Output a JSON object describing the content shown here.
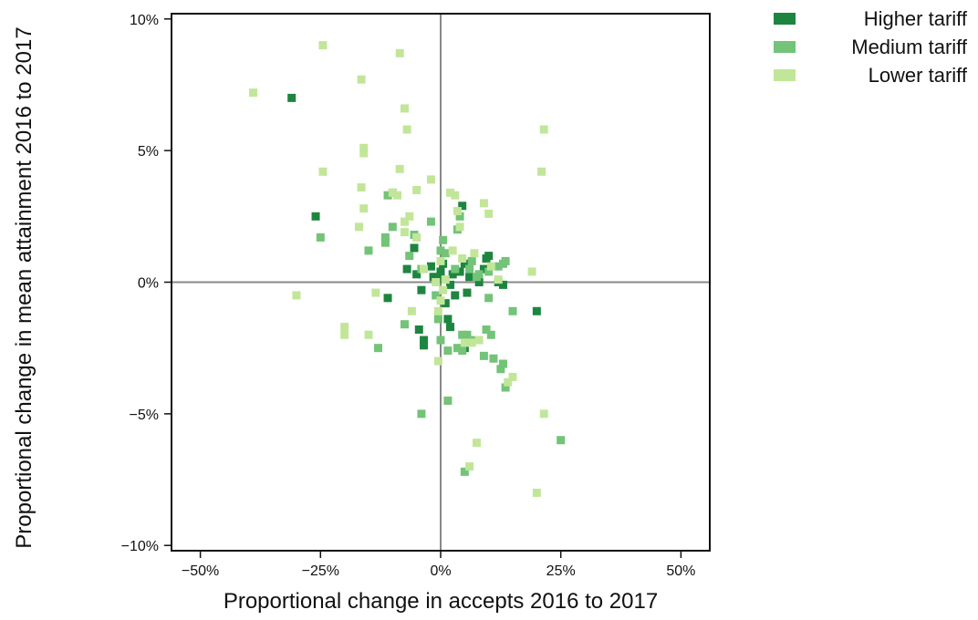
{
  "chart_data": {
    "type": "scatter",
    "title": "",
    "xlabel": "Proportional change in accepts 2016 to 2017",
    "ylabel": "Proportional change in mean attainment 2016 to 2017",
    "xlim": [
      -0.56,
      0.56
    ],
    "ylim": [
      -0.102,
      0.102
    ],
    "xticks": [
      -0.5,
      -0.25,
      0,
      0.25,
      0.5
    ],
    "xtick_labels": [
      "−50%",
      "−25%",
      "0%",
      "25%",
      "50%"
    ],
    "yticks": [
      -0.1,
      -0.05,
      0,
      0.05,
      0.1
    ],
    "ytick_labels": [
      "−10%",
      "−5%",
      "0%",
      "5%",
      "10%"
    ],
    "reference_lines": {
      "x": 0,
      "y": 0
    },
    "grid": false,
    "legend_position": "top-right",
    "marker": "square",
    "series": [
      {
        "name": "Higher tariff",
        "color": "#1e8540",
        "points": [
          [
            -0.31,
            0.07
          ],
          [
            -0.26,
            0.025
          ],
          [
            -0.11,
            -0.006
          ],
          [
            -0.07,
            0.005
          ],
          [
            -0.055,
            0.013
          ],
          [
            -0.05,
            0.003
          ],
          [
            -0.045,
            -0.018
          ],
          [
            -0.04,
            -0.003
          ],
          [
            -0.035,
            -0.022
          ],
          [
            -0.035,
            -0.024
          ],
          [
            -0.02,
            0.006
          ],
          [
            -0.015,
            0.002
          ],
          [
            -0.005,
            0.001
          ],
          [
            0.0,
            0.004
          ],
          [
            0.005,
            0.007
          ],
          [
            0.01,
            -0.008
          ],
          [
            0.015,
            -0.014
          ],
          [
            0.02,
            -0.017
          ],
          [
            0.02,
            -0.001
          ],
          [
            0.025,
            0.003
          ],
          [
            0.03,
            -0.005
          ],
          [
            0.04,
            0.004
          ],
          [
            0.045,
            0.029
          ],
          [
            0.05,
            -0.025
          ],
          [
            0.05,
            0.007
          ],
          [
            0.055,
            -0.004
          ],
          [
            0.06,
            0.002
          ],
          [
            0.08,
            0.0
          ],
          [
            0.09,
            0.005
          ],
          [
            0.095,
            0.009
          ],
          [
            0.1,
            0.01
          ],
          [
            0.12,
            0.0
          ],
          [
            0.13,
            -0.001
          ],
          [
            0.2,
            -0.011
          ]
        ]
      },
      {
        "name": "Medium tariff",
        "color": "#73c378",
        "points": [
          [
            -0.25,
            0.017
          ],
          [
            -0.15,
            0.012
          ],
          [
            -0.13,
            -0.025
          ],
          [
            -0.115,
            0.015
          ],
          [
            -0.115,
            0.017
          ],
          [
            -0.11,
            0.033
          ],
          [
            -0.1,
            0.021
          ],
          [
            -0.1,
            0.034
          ],
          [
            -0.075,
            -0.016
          ],
          [
            -0.065,
            0.01
          ],
          [
            -0.055,
            0.018
          ],
          [
            -0.04,
            -0.05
          ],
          [
            -0.04,
            0.005
          ],
          [
            -0.02,
            0.023
          ],
          [
            -0.01,
            -0.005
          ],
          [
            -0.005,
            -0.014
          ],
          [
            0.0,
            0.012
          ],
          [
            0.0,
            -0.022
          ],
          [
            0.005,
            0.016
          ],
          [
            0.01,
            0.011
          ],
          [
            0.015,
            -0.045
          ],
          [
            0.015,
            -0.026
          ],
          [
            0.03,
            0.005
          ],
          [
            0.035,
            -0.025
          ],
          [
            0.035,
            0.02
          ],
          [
            0.04,
            0.025
          ],
          [
            0.045,
            -0.02
          ],
          [
            0.045,
            -0.026
          ],
          [
            0.05,
            -0.072
          ],
          [
            0.055,
            -0.02
          ],
          [
            0.06,
            0.005
          ],
          [
            0.065,
            0.008
          ],
          [
            0.07,
            -0.022
          ],
          [
            0.075,
            0.002
          ],
          [
            0.08,
            0.003
          ],
          [
            0.09,
            -0.028
          ],
          [
            0.095,
            -0.018
          ],
          [
            0.1,
            0.004
          ],
          [
            0.1,
            -0.006
          ],
          [
            0.105,
            -0.02
          ],
          [
            0.11,
            -0.029
          ],
          [
            0.12,
            0.006
          ],
          [
            0.125,
            -0.033
          ],
          [
            0.13,
            -0.031
          ],
          [
            0.13,
            0.007
          ],
          [
            0.135,
            0.008
          ],
          [
            0.135,
            -0.04
          ],
          [
            0.15,
            -0.011
          ],
          [
            0.25,
            -0.06
          ]
        ]
      },
      {
        "name": "Lower tariff",
        "color": "#c2e699",
        "points": [
          [
            -0.39,
            0.072
          ],
          [
            -0.3,
            -0.005
          ],
          [
            -0.245,
            0.09
          ],
          [
            -0.245,
            0.042
          ],
          [
            -0.2,
            -0.017
          ],
          [
            -0.2,
            -0.02
          ],
          [
            -0.17,
            0.021
          ],
          [
            -0.165,
            0.077
          ],
          [
            -0.165,
            0.036
          ],
          [
            -0.16,
            0.049
          ],
          [
            -0.16,
            0.051
          ],
          [
            -0.16,
            0.028
          ],
          [
            -0.15,
            -0.02
          ],
          [
            -0.135,
            -0.004
          ],
          [
            -0.1,
            0.034
          ],
          [
            -0.09,
            0.033
          ],
          [
            -0.085,
            0.087
          ],
          [
            -0.085,
            0.043
          ],
          [
            -0.075,
            0.023
          ],
          [
            -0.075,
            0.019
          ],
          [
            -0.075,
            0.066
          ],
          [
            -0.07,
            0.058
          ],
          [
            -0.065,
            0.025
          ],
          [
            -0.06,
            -0.011
          ],
          [
            -0.05,
            0.035
          ],
          [
            -0.05,
            0.017
          ],
          [
            -0.035,
            0.005
          ],
          [
            -0.02,
            0.039
          ],
          [
            -0.01,
            0.0
          ],
          [
            -0.005,
            -0.03
          ],
          [
            -0.005,
            -0.011
          ],
          [
            0.0,
            0.008
          ],
          [
            0.0,
            -0.007
          ],
          [
            0.005,
            -0.003
          ],
          [
            0.01,
            0.001
          ],
          [
            0.02,
            0.034
          ],
          [
            0.025,
            0.012
          ],
          [
            0.03,
            0.033
          ],
          [
            0.035,
            0.027
          ],
          [
            0.04,
            0.021
          ],
          [
            0.045,
            0.009
          ],
          [
            0.05,
            -0.023
          ],
          [
            0.06,
            -0.07
          ],
          [
            0.065,
            -0.023
          ],
          [
            0.07,
            0.011
          ],
          [
            0.075,
            -0.061
          ],
          [
            0.08,
            -0.022
          ],
          [
            0.09,
            0.03
          ],
          [
            0.1,
            0.026
          ],
          [
            0.105,
            0.006
          ],
          [
            0.12,
            0.001
          ],
          [
            0.14,
            -0.038
          ],
          [
            0.15,
            -0.036
          ],
          [
            0.19,
            0.004
          ],
          [
            0.2,
            -0.08
          ],
          [
            0.21,
            0.042
          ],
          [
            0.215,
            0.058
          ],
          [
            0.215,
            -0.05
          ]
        ]
      }
    ]
  }
}
